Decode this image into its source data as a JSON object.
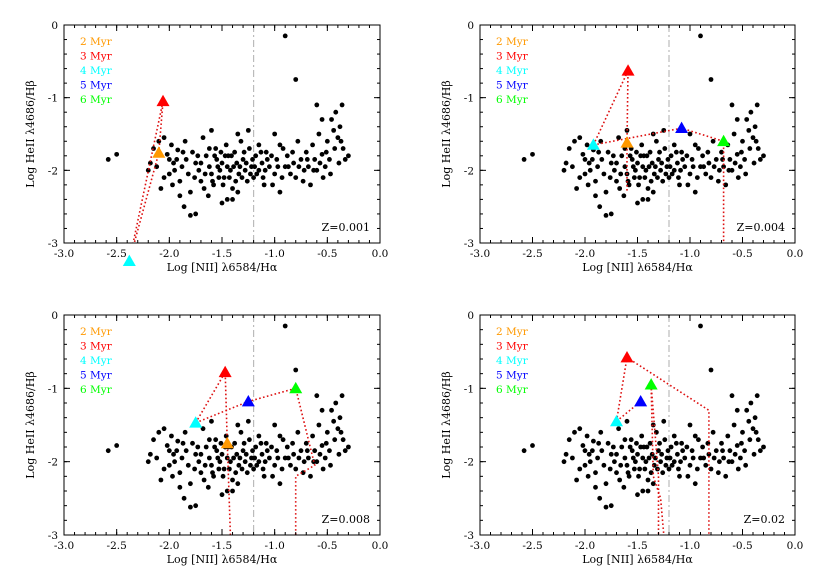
{
  "chart_data": [
    {
      "type": "scatter",
      "panel_label": "Z=0.001",
      "xlabel": "Log [NII] λ6584/Hα",
      "ylabel": "Log HeII λ4686/Hβ",
      "xlim": [
        -3.0,
        0.0
      ],
      "ylim": [
        -3,
        0
      ],
      "xticks": [
        "-3.0",
        "-2.5",
        "-2.0",
        "-1.5",
        "-1.0",
        "-0.5",
        "0.0"
      ],
      "yticks": [
        "0",
        "-1",
        "-2",
        "-3"
      ],
      "vline_x": -1.2,
      "legend": [
        {
          "label": "2 Myr",
          "color": "#ff9900"
        },
        {
          "label": "3 Myr",
          "color": "#ff0000"
        },
        {
          "label": "4 Myr",
          "color": "#00ffff"
        },
        {
          "label": "5 Myr",
          "color": "#0000ff"
        },
        {
          "label": "6 Myr",
          "color": "#00ff00"
        }
      ],
      "model_points": [
        {
          "age": "2 Myr",
          "x": -2.1,
          "y": -1.76,
          "color": "#ff9900"
        },
        {
          "age": "3 Myr",
          "x": -2.06,
          "y": -1.05,
          "color": "#ff0000"
        },
        {
          "age": "4 Myr",
          "x": -2.38,
          "y": -3.25,
          "color": "#00ffff"
        }
      ],
      "track_polylines": [
        [
          [
            -2.1,
            -1.76
          ],
          [
            -2.06,
            -1.05
          ],
          [
            -2.38,
            -3.25
          ]
        ],
        [
          [
            -2.38,
            -3.25
          ],
          [
            -2.1,
            -1.76
          ]
        ]
      ]
    },
    {
      "type": "scatter",
      "panel_label": "Z=0.004",
      "xlabel": "Log [NII] λ6584/Hα",
      "ylabel": "Log HeII λ4686/Hβ",
      "xlim": [
        -3.0,
        0.0
      ],
      "ylim": [
        -3,
        0
      ],
      "xticks": [
        "-3.0",
        "-2.5",
        "-2.0",
        "-1.5",
        "-1.0",
        "-0.5",
        "0.0"
      ],
      "yticks": [
        "0",
        "-1",
        "-2",
        "-3"
      ],
      "vline_x": -1.2,
      "legend": [
        {
          "label": "2 Myr",
          "color": "#ff9900"
        },
        {
          "label": "3 Myr",
          "color": "#ff0000"
        },
        {
          "label": "4 Myr",
          "color": "#00ffff"
        },
        {
          "label": "5 Myr",
          "color": "#0000ff"
        },
        {
          "label": "6 Myr",
          "color": "#00ff00"
        }
      ],
      "model_points": [
        {
          "age": "2 Myr",
          "x": -1.6,
          "y": -1.62,
          "color": "#ff9900"
        },
        {
          "age": "3 Myr",
          "x": -1.59,
          "y": -0.63,
          "color": "#ff0000"
        },
        {
          "age": "4 Myr",
          "x": -1.92,
          "y": -1.65,
          "color": "#00ffff"
        },
        {
          "age": "5 Myr",
          "x": -1.08,
          "y": -1.42,
          "color": "#0000ff"
        },
        {
          "age": "6 Myr",
          "x": -0.68,
          "y": -1.6,
          "color": "#00ff00"
        }
      ],
      "track_polylines": [
        [
          [
            -1.92,
            -1.65
          ],
          [
            -1.59,
            -0.63
          ],
          [
            -1.6,
            -1.62
          ],
          [
            -1.6,
            -2.3
          ]
        ],
        [
          [
            -1.92,
            -1.65
          ],
          [
            -1.08,
            -1.42
          ],
          [
            -0.68,
            -1.6
          ],
          [
            -0.68,
            -3.0
          ]
        ]
      ]
    },
    {
      "type": "scatter",
      "panel_label": "Z=0.008",
      "xlabel": "Log [NII] λ6584/Hα",
      "ylabel": "Log HeII λ4686/Hβ",
      "xlim": [
        -3.0,
        0.0
      ],
      "ylim": [
        -3,
        0
      ],
      "xticks": [
        "-3.0",
        "-2.5",
        "-2.0",
        "-1.5",
        "-1.0",
        "-0.5",
        "0.0"
      ],
      "yticks": [
        "0",
        "-1",
        "-2",
        "-3"
      ],
      "vline_x": -1.2,
      "legend": [
        {
          "label": "2 Myr",
          "color": "#ff9900"
        },
        {
          "label": "3 Myr",
          "color": "#ff0000"
        },
        {
          "label": "4 Myr",
          "color": "#00ffff"
        },
        {
          "label": "5 Myr",
          "color": "#0000ff"
        },
        {
          "label": "6 Myr",
          "color": "#00ff00"
        }
      ],
      "model_points": [
        {
          "age": "2 Myr",
          "x": -1.45,
          "y": -1.75,
          "color": "#ff9900"
        },
        {
          "age": "3 Myr",
          "x": -1.47,
          "y": -0.78,
          "color": "#ff0000"
        },
        {
          "age": "4 Myr",
          "x": -1.75,
          "y": -1.47,
          "color": "#00ffff"
        },
        {
          "age": "5 Myr",
          "x": -1.25,
          "y": -1.18,
          "color": "#0000ff"
        },
        {
          "age": "6 Myr",
          "x": -0.8,
          "y": -1.0,
          "color": "#00ff00"
        }
      ],
      "track_polylines": [
        [
          [
            -1.75,
            -1.47
          ],
          [
            -1.47,
            -0.78
          ],
          [
            -1.45,
            -1.75
          ],
          [
            -1.42,
            -3.0
          ]
        ],
        [
          [
            -1.75,
            -1.47
          ],
          [
            -1.25,
            -1.18
          ],
          [
            -0.8,
            -1.0
          ],
          [
            -0.62,
            -2.05
          ],
          [
            -0.8,
            -2.2
          ],
          [
            -0.8,
            -3.0
          ]
        ]
      ]
    },
    {
      "type": "scatter",
      "panel_label": "Z=0.02",
      "xlabel": "Log [NII] λ6584/Hα",
      "ylabel": "Log HeII λ4686/Hβ",
      "xlim": [
        -3.0,
        0.0
      ],
      "ylim": [
        -3,
        0
      ],
      "xticks": [
        "-3.0",
        "-2.5",
        "-2.0",
        "-1.5",
        "-1.0",
        "-0.5",
        "0.0"
      ],
      "yticks": [
        "0",
        "-1",
        "-2",
        "-3"
      ],
      "vline_x": -1.2,
      "legend": [
        {
          "label": "2 Myr",
          "color": "#ff9900"
        },
        {
          "label": "3 Myr",
          "color": "#ff0000"
        },
        {
          "label": "4 Myr",
          "color": "#00ffff"
        },
        {
          "label": "5 Myr",
          "color": "#0000ff"
        },
        {
          "label": "6 Myr",
          "color": "#00ff00"
        }
      ],
      "model_points": [
        {
          "age": "3 Myr",
          "x": -1.6,
          "y": -0.58,
          "color": "#ff0000"
        },
        {
          "age": "4 Myr",
          "x": -1.7,
          "y": -1.45,
          "color": "#00ffff"
        },
        {
          "age": "5 Myr",
          "x": -1.47,
          "y": -1.18,
          "color": "#0000ff"
        },
        {
          "age": "6 Myr",
          "x": -1.37,
          "y": -0.95,
          "color": "#00ff00"
        }
      ],
      "track_polylines": [
        [
          [
            -1.7,
            -1.45
          ],
          [
            -1.6,
            -0.58
          ],
          [
            -0.82,
            -1.3
          ],
          [
            -0.82,
            -3.0
          ]
        ],
        [
          [
            -1.7,
            -1.45
          ],
          [
            -1.47,
            -1.18
          ]
        ],
        [
          [
            -1.37,
            -0.95
          ],
          [
            -1.35,
            -2.2
          ],
          [
            -1.28,
            -2.5
          ],
          [
            -1.25,
            -3.0
          ]
        ],
        [
          [
            -1.37,
            -0.95
          ],
          [
            -1.3,
            -2.2
          ],
          [
            -1.3,
            -3.0
          ]
        ]
      ]
    }
  ],
  "observed_sample": {
    "color": "#000000",
    "points": [
      [
        -2.5,
        -1.78
      ],
      [
        -2.58,
        -1.85
      ],
      [
        -2.05,
        -1.55
      ],
      [
        -2.1,
        -1.6
      ],
      [
        -2.15,
        -1.7
      ],
      [
        -2.02,
        -1.78
      ],
      [
        -2.08,
        -2.25
      ],
      [
        -2.18,
        -1.9
      ],
      [
        -2.2,
        -2.0
      ],
      [
        -2.0,
        -1.85
      ],
      [
        -1.95,
        -2.0
      ],
      [
        -1.9,
        -2.15
      ],
      [
        -1.98,
        -1.65
      ],
      [
        -1.92,
        -1.72
      ],
      [
        -1.85,
        -1.6
      ],
      [
        -1.88,
        -1.95
      ],
      [
        -1.82,
        -2.05
      ],
      [
        -1.8,
        -2.3
      ],
      [
        -1.86,
        -2.5
      ],
      [
        -1.78,
        -1.75
      ],
      [
        -1.75,
        -1.9
      ],
      [
        -1.72,
        -2.0
      ],
      [
        -1.7,
        -2.15
      ],
      [
        -1.68,
        -1.55
      ],
      [
        -1.65,
        -1.8
      ],
      [
        -1.62,
        -1.95
      ],
      [
        -1.6,
        -2.05
      ],
      [
        -1.58,
        -2.2
      ],
      [
        -1.56,
        -1.7
      ],
      [
        -1.55,
        -1.85
      ],
      [
        -1.52,
        -2.0
      ],
      [
        -1.5,
        -1.9
      ],
      [
        -1.48,
        -2.1
      ],
      [
        -1.46,
        -1.65
      ],
      [
        -1.44,
        -1.8
      ],
      [
        -1.42,
        -2.0
      ],
      [
        -1.4,
        -2.25
      ],
      [
        -1.38,
        -1.75
      ],
      [
        -1.36,
        -1.9
      ],
      [
        -1.34,
        -2.05
      ],
      [
        -1.32,
        -1.6
      ],
      [
        -1.3,
        -1.85
      ],
      [
        -1.28,
        -2.0
      ],
      [
        -1.26,
        -2.15
      ],
      [
        -1.24,
        -1.7
      ],
      [
        -1.22,
        -1.95
      ],
      [
        -1.2,
        -2.1
      ],
      [
        -1.18,
        -1.8
      ],
      [
        -1.15,
        -2.0
      ],
      [
        -1.12,
        -1.9
      ],
      [
        -1.1,
        -2.2
      ],
      [
        -1.08,
        -1.75
      ],
      [
        -1.05,
        -1.95
      ],
      [
        -1.0,
        -2.05
      ],
      [
        -0.98,
        -1.85
      ],
      [
        -0.95,
        -2.3
      ],
      [
        -0.92,
        -1.7
      ],
      [
        -0.9,
        -1.95
      ],
      [
        -0.88,
        -1.8
      ],
      [
        -0.85,
        -2.05
      ],
      [
        -0.82,
        -1.9
      ],
      [
        -0.8,
        -2.1
      ],
      [
        -0.78,
        -1.6
      ],
      [
        -0.75,
        -1.85
      ],
      [
        -0.72,
        -2.0
      ],
      [
        -0.7,
        -1.75
      ],
      [
        -0.68,
        -1.95
      ],
      [
        -0.66,
        -2.2
      ],
      [
        -0.64,
        -1.65
      ],
      [
        -0.62,
        -1.85
      ],
      [
        -0.6,
        -2.0
      ],
      [
        -0.58,
        -1.5
      ],
      [
        -0.55,
        -1.78
      ],
      [
        -0.52,
        -1.95
      ],
      [
        -0.5,
        -1.6
      ],
      [
        -0.48,
        -1.85
      ],
      [
        -0.46,
        -1.3
      ],
      [
        -0.44,
        -1.45
      ],
      [
        -0.42,
        -1.2
      ],
      [
        -0.4,
        -1.55
      ],
      [
        -0.38,
        -1.4
      ],
      [
        -0.36,
        -1.1
      ],
      [
        -0.35,
        -1.7
      ],
      [
        -0.33,
        -1.85
      ],
      [
        -0.3,
        -1.8
      ],
      [
        -0.9,
        -0.15
      ],
      [
        -0.8,
        -0.75
      ],
      [
        -0.6,
        -1.1
      ],
      [
        -0.55,
        -1.3
      ],
      [
        -1.75,
        -2.6
      ],
      [
        -1.8,
        -2.62
      ],
      [
        -1.5,
        -2.45
      ],
      [
        -1.4,
        -2.4
      ],
      [
        -1.9,
        -2.35
      ],
      [
        -2.05,
        -2.1
      ],
      [
        -1.6,
        -1.45
      ],
      [
        -1.35,
        -1.5
      ],
      [
        -1.25,
        -1.45
      ],
      [
        -1.0,
        -1.5
      ],
      [
        -1.15,
        -1.65
      ],
      [
        -0.95,
        -1.65
      ],
      [
        -1.7,
        -1.9
      ],
      [
        -1.66,
        -2.05
      ],
      [
        -1.62,
        -1.7
      ],
      [
        -1.54,
        -1.95
      ],
      [
        -1.49,
        -2.2
      ],
      [
        -1.45,
        -1.95
      ],
      [
        -1.41,
        -1.8
      ],
      [
        -1.37,
        -2.15
      ],
      [
        -1.33,
        -1.95
      ],
      [
        -1.29,
        -1.75
      ],
      [
        -1.21,
        -1.85
      ],
      [
        -1.17,
        -2.05
      ],
      [
        -1.13,
        -1.75
      ],
      [
        -1.09,
        -2.0
      ],
      [
        -1.03,
        -1.8
      ],
      [
        -1.96,
        -1.9
      ],
      [
        -2.0,
        -2.05
      ],
      [
        -1.84,
        -1.85
      ],
      [
        -1.76,
        -2.1
      ],
      [
        -1.73,
        -1.8
      ],
      [
        -1.67,
        -2.25
      ],
      [
        -1.57,
        -1.8
      ],
      [
        -1.53,
        -2.1
      ],
      [
        -1.47,
        -1.8
      ],
      [
        -1.43,
        -2.1
      ],
      [
        -1.39,
        -1.95
      ],
      [
        -1.31,
        -2.1
      ],
      [
        -1.27,
        -1.9
      ],
      [
        -1.23,
        -2.05
      ],
      [
        -1.19,
        -1.95
      ],
      [
        -1.11,
        -2.1
      ],
      [
        -1.07,
        -1.85
      ],
      [
        -1.02,
        -2.2
      ],
      [
        -0.97,
        -1.95
      ],
      [
        -0.93,
        -2.1
      ],
      [
        -0.87,
        -1.95
      ],
      [
        -0.83,
        -1.75
      ],
      [
        -0.77,
        -1.95
      ],
      [
        -0.73,
        -2.15
      ],
      [
        -0.69,
        -1.85
      ],
      [
        -0.63,
        -2.0
      ],
      [
        -0.57,
        -1.9
      ],
      [
        -0.54,
        -2.1
      ],
      [
        -0.51,
        -1.75
      ],
      [
        -0.47,
        -2.05
      ],
      [
        -0.43,
        -1.7
      ],
      [
        -0.39,
        -1.9
      ],
      [
        -0.37,
        -1.6
      ],
      [
        -1.87,
        -1.75
      ],
      [
        -1.93,
        -1.85
      ],
      [
        -1.97,
        -2.2
      ],
      [
        -2.12,
        -1.95
      ],
      [
        -1.63,
        -2.35
      ],
      [
        -1.59,
        -2.15
      ],
      [
        -1.51,
        -1.75
      ],
      [
        -1.35,
        -2.3
      ],
      [
        -1.45,
        -2.4
      ]
    ]
  }
}
